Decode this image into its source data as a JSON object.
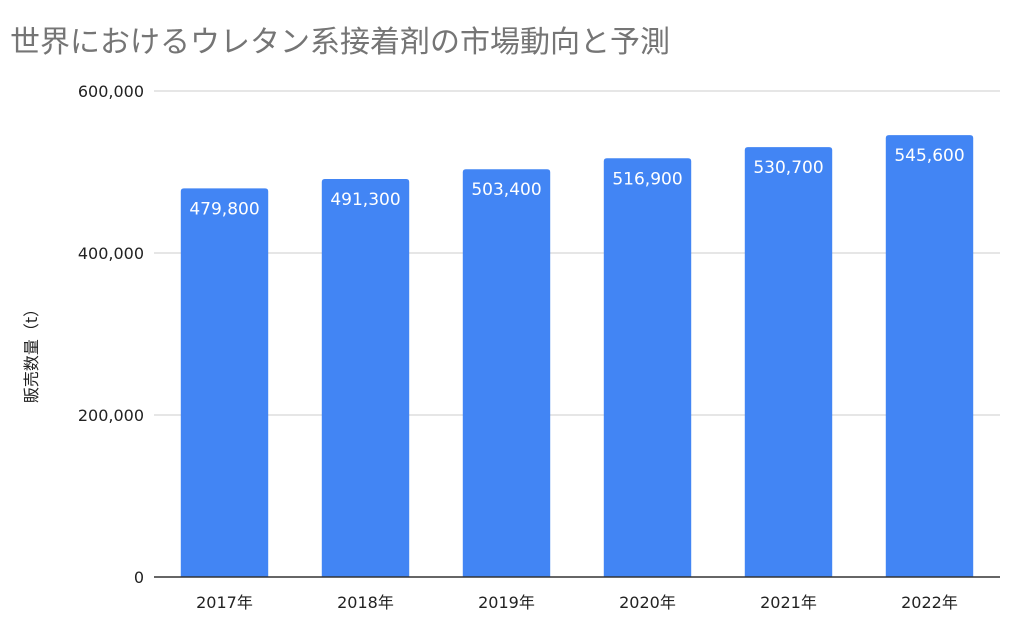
{
  "chart_data": {
    "type": "bar",
    "title": "世界におけるウレタン系接着剤の市場動向と予測",
    "xlabel": "",
    "ylabel": "販売数量（t）",
    "categories": [
      "2017年",
      "2018年",
      "2019年",
      "2020年",
      "2021年",
      "2022年"
    ],
    "values": [
      479800,
      491300,
      503400,
      516900,
      530700,
      545600
    ],
    "data_labels": [
      "479,800",
      "491,300",
      "503,400",
      "516,900",
      "530,700",
      "545,600"
    ],
    "ylim": [
      0,
      600000
    ],
    "yticks": [
      0,
      200000,
      400000,
      600000
    ],
    "ytick_labels": [
      "0",
      "200,000",
      "400,000",
      "600,000"
    ],
    "grid": true,
    "legend": "none",
    "colors": {
      "bar": "#4285f4",
      "grid": "#cccccc",
      "axis": "#333333",
      "title": "#757575",
      "text": "#222222",
      "data_label": "#ffffff"
    }
  }
}
